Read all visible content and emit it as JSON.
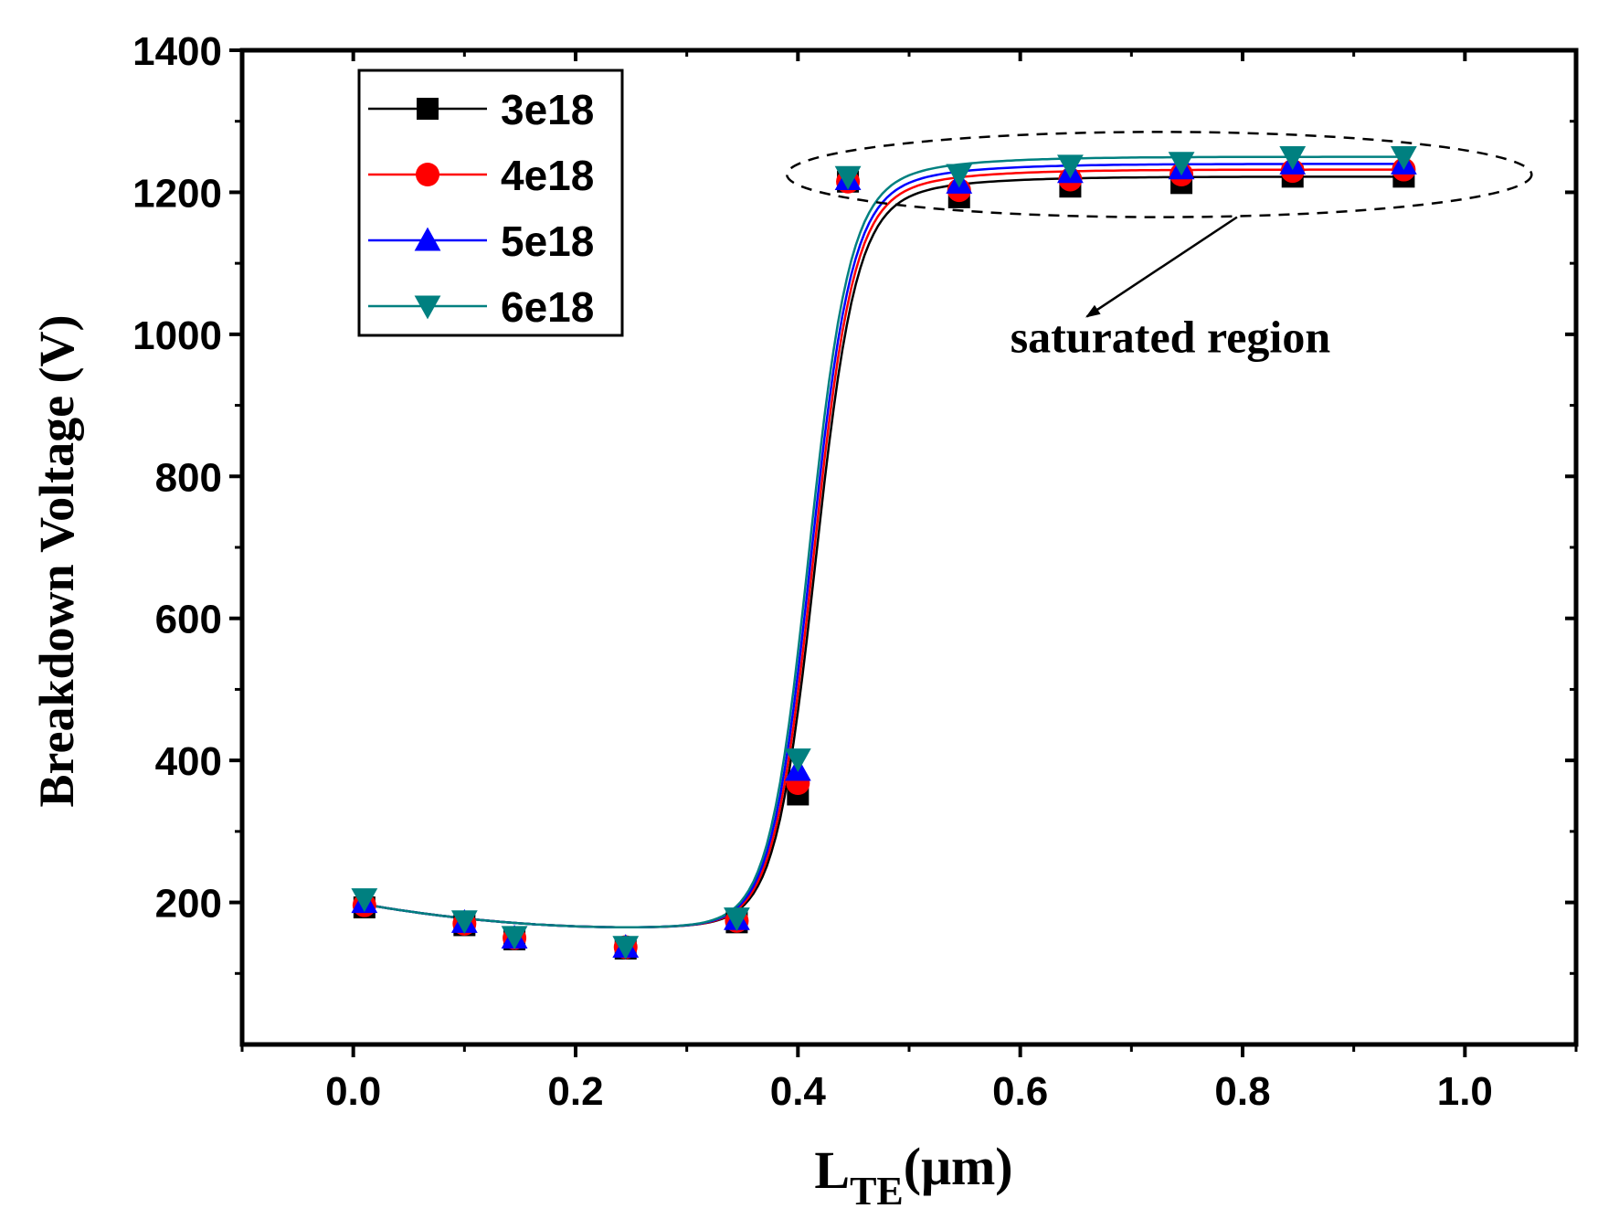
{
  "chart_data": {
    "type": "line",
    "title": "",
    "xlabel": "L",
    "xlabel_sub": "TE",
    "xlabel_unit": "(μm)",
    "ylabel": "Breakdown Voltage (V)",
    "xlim": [
      -0.1,
      1.1
    ],
    "ylim": [
      0,
      1400
    ],
    "xticks": [
      0.0,
      0.2,
      0.4,
      0.6,
      0.8,
      1.0
    ],
    "xtick_labels": [
      "0.0",
      "0.2",
      "0.4",
      "0.6",
      "0.8",
      "1.0"
    ],
    "yticks": [
      200,
      400,
      600,
      800,
      1000,
      1200,
      1400
    ],
    "ytick_labels": [
      "200",
      "400",
      "600",
      "800",
      "1000",
      "1200",
      "1400"
    ],
    "x": [
      0.01,
      0.1,
      0.145,
      0.245,
      0.345,
      0.4,
      0.445,
      0.545,
      0.645,
      0.745,
      0.845,
      0.945
    ],
    "series": [
      {
        "name": "3e18",
        "color": "#000000",
        "marker": "square",
        "values": [
          193,
          168,
          148,
          135,
          172,
          352,
          1215,
          1193,
          1208,
          1213,
          1222,
          1222
        ],
        "plateau": 1222
      },
      {
        "name": "4e18",
        "color": "#ff0000",
        "marker": "circle",
        "values": [
          196,
          170,
          150,
          137,
          174,
          368,
          1215,
          1203,
          1218,
          1225,
          1230,
          1232
        ],
        "plateau": 1232
      },
      {
        "name": "5e18",
        "color": "#0000ff",
        "marker": "triangle-up",
        "values": [
          200,
          172,
          150,
          137,
          176,
          386,
          1218,
          1213,
          1228,
          1233,
          1240,
          1240
        ],
        "plateau": 1240
      },
      {
        "name": "6e18",
        "color": "#008080",
        "marker": "triangle-down",
        "values": [
          205,
          174,
          152,
          138,
          178,
          402,
          1222,
          1225,
          1238,
          1242,
          1250,
          1250
        ],
        "plateau": 1250
      }
    ],
    "legend_position": "top-left",
    "annotation": {
      "text": "saturated region",
      "ellipse_center": [
        0.725,
        1225
      ],
      "ellipse_radius": [
        0.335,
        60
      ],
      "arrow_from": [
        0.795,
        1165
      ],
      "arrow_to": [
        0.66,
        1025
      ],
      "text_anchor": [
        0.735,
        975
      ]
    }
  }
}
